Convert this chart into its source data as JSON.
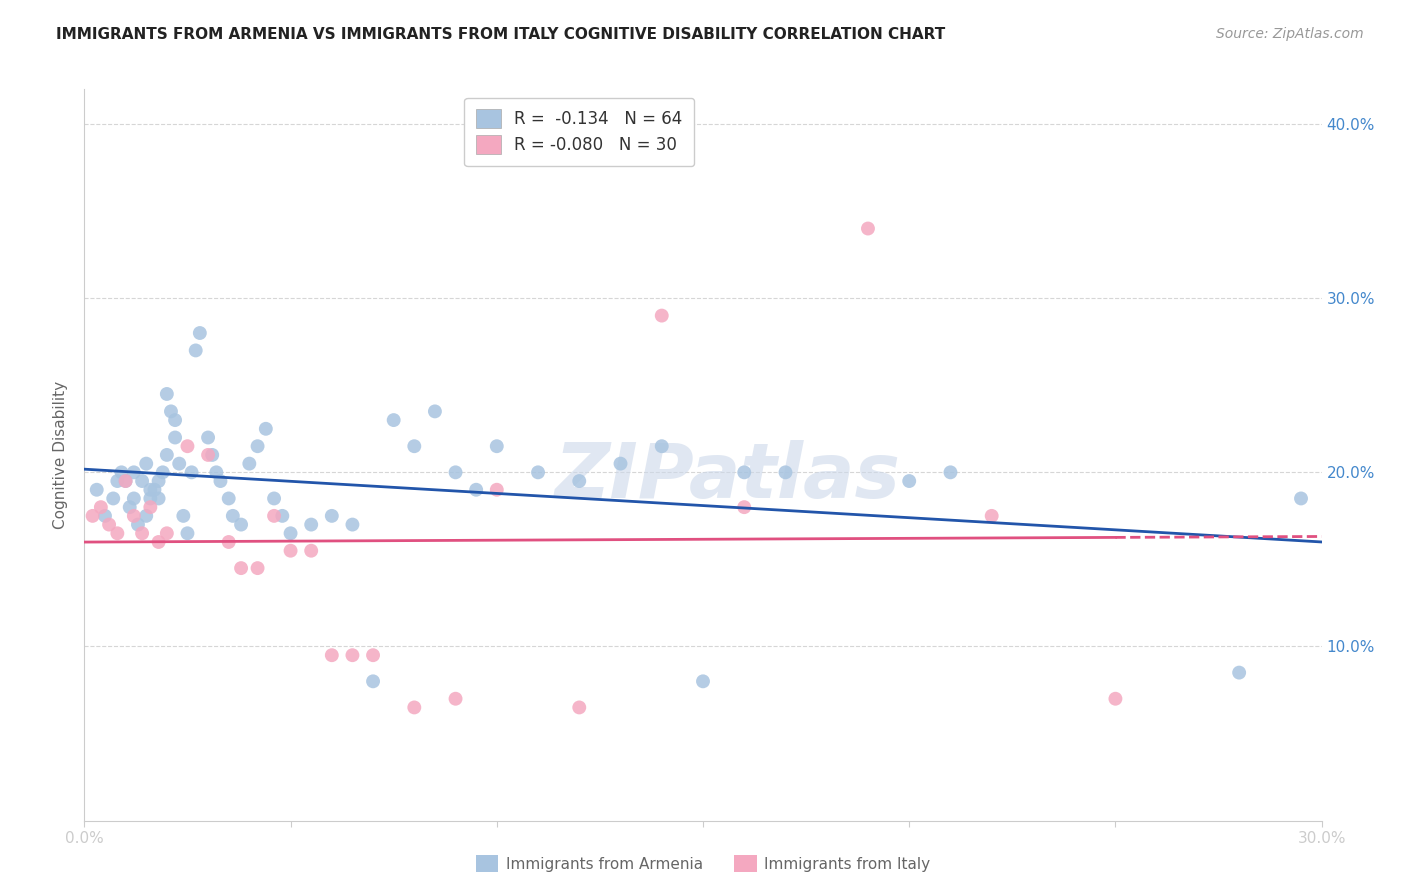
{
  "title": "IMMIGRANTS FROM ARMENIA VS IMMIGRANTS FROM ITALY COGNITIVE DISABILITY CORRELATION CHART",
  "source": "Source: ZipAtlas.com",
  "ylabel": "Cognitive Disability",
  "xlim": [
    0.0,
    0.3
  ],
  "ylim": [
    0.0,
    0.42
  ],
  "armenia_r": "-0.134",
  "armenia_n": "64",
  "italy_r": "-0.080",
  "italy_n": "30",
  "armenia_color": "#a8c4e0",
  "italy_color": "#f4a8c0",
  "armenia_line_color": "#2255aa",
  "italy_line_color": "#e05080",
  "background_color": "#ffffff",
  "grid_color": "#cccccc",
  "axis_label_color": "#4488cc",
  "watermark": "ZIPatlas",
  "armenia_x": [
    0.003,
    0.005,
    0.007,
    0.008,
    0.009,
    0.01,
    0.011,
    0.012,
    0.012,
    0.013,
    0.014,
    0.015,
    0.015,
    0.016,
    0.016,
    0.017,
    0.018,
    0.018,
    0.019,
    0.02,
    0.02,
    0.021,
    0.022,
    0.022,
    0.023,
    0.024,
    0.025,
    0.026,
    0.027,
    0.028,
    0.03,
    0.031,
    0.032,
    0.033,
    0.035,
    0.036,
    0.038,
    0.04,
    0.042,
    0.044,
    0.046,
    0.048,
    0.05,
    0.055,
    0.06,
    0.065,
    0.07,
    0.075,
    0.08,
    0.085,
    0.09,
    0.095,
    0.1,
    0.11,
    0.12,
    0.13,
    0.14,
    0.15,
    0.16,
    0.17,
    0.2,
    0.21,
    0.28,
    0.295
  ],
  "armenia_y": [
    0.19,
    0.175,
    0.185,
    0.195,
    0.2,
    0.195,
    0.18,
    0.185,
    0.2,
    0.17,
    0.195,
    0.175,
    0.205,
    0.19,
    0.185,
    0.19,
    0.185,
    0.195,
    0.2,
    0.21,
    0.245,
    0.235,
    0.23,
    0.22,
    0.205,
    0.175,
    0.165,
    0.2,
    0.27,
    0.28,
    0.22,
    0.21,
    0.2,
    0.195,
    0.185,
    0.175,
    0.17,
    0.205,
    0.215,
    0.225,
    0.185,
    0.175,
    0.165,
    0.17,
    0.175,
    0.17,
    0.08,
    0.23,
    0.215,
    0.235,
    0.2,
    0.19,
    0.215,
    0.2,
    0.195,
    0.205,
    0.215,
    0.08,
    0.2,
    0.2,
    0.195,
    0.2,
    0.085,
    0.185
  ],
  "italy_x": [
    0.002,
    0.004,
    0.006,
    0.008,
    0.01,
    0.012,
    0.014,
    0.016,
    0.018,
    0.02,
    0.025,
    0.03,
    0.035,
    0.038,
    0.042,
    0.046,
    0.05,
    0.055,
    0.06,
    0.065,
    0.07,
    0.08,
    0.09,
    0.1,
    0.12,
    0.14,
    0.16,
    0.19,
    0.22,
    0.25
  ],
  "italy_y": [
    0.175,
    0.18,
    0.17,
    0.165,
    0.195,
    0.175,
    0.165,
    0.18,
    0.16,
    0.165,
    0.215,
    0.21,
    0.16,
    0.145,
    0.145,
    0.175,
    0.155,
    0.155,
    0.095,
    0.095,
    0.095,
    0.065,
    0.07,
    0.19,
    0.065,
    0.29,
    0.18,
    0.34,
    0.175,
    0.07
  ]
}
